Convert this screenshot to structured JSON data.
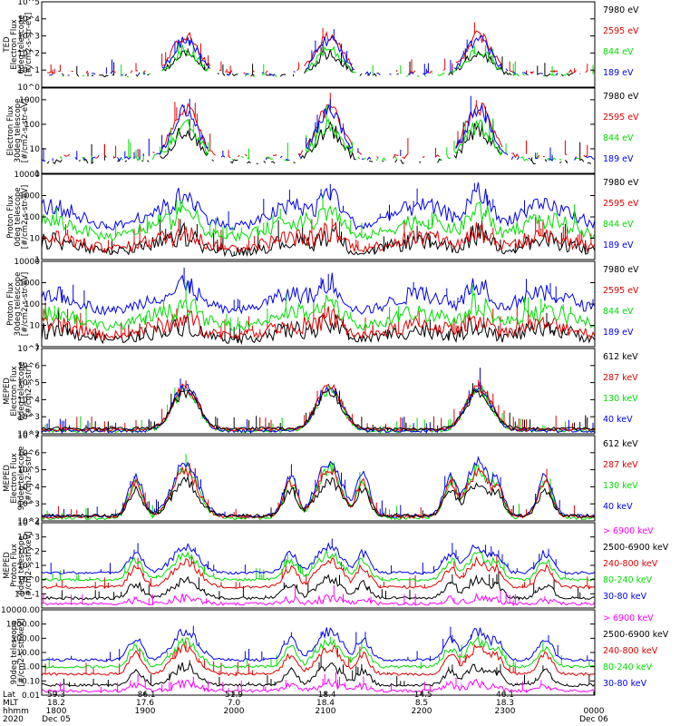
{
  "colors": {
    "black": "#000000",
    "red": "#e00000",
    "green": "#00dd00",
    "blue": "#0000ee",
    "magenta": "#ff00ff",
    "frame": "#000000"
  },
  "chart_data": [
    {
      "type": "line",
      "ylabel": [
        "TED",
        "Electron Flux",
        "0deg telescope",
        "[#/cm2-s-str-eV]"
      ],
      "scale": "log",
      "ylim": [
        1,
        100000
      ],
      "ticks": [
        {
          "v": 1,
          "t": "10^0"
        },
        {
          "v": 10,
          "t": "10^1"
        },
        {
          "v": 100,
          "t": "10^2"
        },
        {
          "v": 1000,
          "t": "10^3"
        },
        {
          "v": 10000,
          "t": "10^4"
        },
        {
          "v": 100000,
          "t": "10^5"
        }
      ],
      "legend": [
        {
          "label": "7980 eV",
          "color": "black"
        },
        {
          "label": "2595 eV",
          "color": "red"
        },
        {
          "label": "844 eV",
          "color": "green"
        },
        {
          "label": "189 eV",
          "color": "blue"
        }
      ],
      "style": "ted_e",
      "series": [
        {
          "color": "black",
          "peak": 100,
          "floor": 5
        },
        {
          "color": "red",
          "peak": 1000,
          "floor": 8
        },
        {
          "color": "green",
          "peak": 150,
          "floor": 5
        },
        {
          "color": "blue",
          "peak": 600,
          "floor": 6
        }
      ]
    },
    {
      "type": "line",
      "ylabel": [
        "Electron Flux",
        "30deg telescope",
        "[#/cm2-s-str-eV]"
      ],
      "scale": "log",
      "ylim": [
        1,
        3000
      ],
      "ticks": [
        {
          "v": 1,
          "t": "1"
        },
        {
          "v": 10,
          "t": "10"
        },
        {
          "v": 100,
          "t": "100"
        },
        {
          "v": 1000,
          "t": "1000"
        }
      ],
      "legend": [
        {
          "label": "7980 eV",
          "color": "black"
        },
        {
          "label": "2595 eV",
          "color": "red"
        },
        {
          "label": "844 eV",
          "color": "green"
        },
        {
          "label": "189 eV",
          "color": "blue"
        }
      ],
      "style": "ted_e",
      "series": [
        {
          "color": "black",
          "peak": 60,
          "floor": 3
        },
        {
          "color": "red",
          "peak": 500,
          "floor": 5
        },
        {
          "color": "green",
          "peak": 80,
          "floor": 4
        },
        {
          "color": "blue",
          "peak": 400,
          "floor": 4
        }
      ]
    },
    {
      "type": "line",
      "ylabel": [
        "Proton Flux",
        "0deg telescope",
        "[#/cm2-s-str-eV]"
      ],
      "scale": "log",
      "ylim": [
        1,
        10000
      ],
      "ticks": [
        {
          "v": 1,
          "t": "1"
        },
        {
          "v": 10,
          "t": "10"
        },
        {
          "v": 100,
          "t": "100"
        },
        {
          "v": 1000,
          "t": "1000"
        },
        {
          "v": 10000,
          "t": "10000"
        }
      ],
      "legend": [
        {
          "label": "7980 eV",
          "color": "black"
        },
        {
          "label": "2595 eV",
          "color": "red"
        },
        {
          "label": "844 eV",
          "color": "green"
        },
        {
          "label": "189 eV",
          "color": "blue"
        }
      ],
      "style": "ted_p",
      "series": [
        {
          "color": "black",
          "peak": 20,
          "floor": 2
        },
        {
          "color": "red",
          "peak": 30,
          "floor": 3
        },
        {
          "color": "blue",
          "peak": 2000,
          "floor": 30
        },
        {
          "color": "green",
          "peak": 300,
          "floor": 10
        }
      ]
    },
    {
      "type": "line",
      "ylabel": [
        "Proton Flux",
        "30deg telescope",
        "[#/cm2-s-str-eV]"
      ],
      "scale": "log",
      "ylim": [
        1,
        10000
      ],
      "ticks": [
        {
          "v": 1,
          "t": "1"
        },
        {
          "v": 10,
          "t": "10"
        },
        {
          "v": 100,
          "t": "100"
        },
        {
          "v": 1000,
          "t": "1000"
        },
        {
          "v": 10000,
          "t": "10000"
        }
      ],
      "legend": [
        {
          "label": "7980 eV",
          "color": "black"
        },
        {
          "label": "2595 eV",
          "color": "red"
        },
        {
          "label": "844 eV",
          "color": "green"
        },
        {
          "label": "189 eV",
          "color": "blue"
        }
      ],
      "style": "ted_p",
      "series": [
        {
          "color": "black",
          "peak": 15,
          "floor": 2
        },
        {
          "color": "red",
          "peak": 30,
          "floor": 3
        },
        {
          "color": "blue",
          "peak": 1500,
          "floor": 40
        },
        {
          "color": "green",
          "peak": 150,
          "floor": 8
        }
      ]
    },
    {
      "type": "line",
      "ylabel": [
        "MEPED",
        "Electron Flux",
        "0deg telescope",
        "[#/cm2-s-str]"
      ],
      "scale": "log",
      "ylim": [
        100,
        10000000
      ],
      "ticks": [
        {
          "v": 100,
          "t": "10^2"
        },
        {
          "v": 1000,
          "t": "10^3"
        },
        {
          "v": 10000,
          "t": "10^4"
        },
        {
          "v": 100000,
          "t": "10^5"
        },
        {
          "v": 1000000,
          "t": "10^6"
        },
        {
          "v": 10000000,
          "t": "10^7"
        }
      ],
      "legend": [
        {
          "label": "612 keV",
          "color": "black"
        },
        {
          "label": "287 keV",
          "color": "red"
        },
        {
          "label": "130 keV",
          "color": "green"
        },
        {
          "label": "40 keV",
          "color": "blue"
        }
      ],
      "style": "mep_e0",
      "series": [
        {
          "color": "green",
          "peak": 40000,
          "floor": 150
        },
        {
          "color": "blue",
          "peak": 60000,
          "floor": 150
        },
        {
          "color": "red",
          "peak": 50000,
          "floor": 180
        },
        {
          "color": "black",
          "peak": 30000,
          "floor": 200
        }
      ]
    },
    {
      "type": "line",
      "ylabel": [
        "MEPED",
        "Electron Flux",
        "90deg telescope",
        "[#/cm2-s-str]"
      ],
      "scale": "log",
      "ylim": [
        100,
        10000000
      ],
      "ticks": [
        {
          "v": 100,
          "t": "10^2"
        },
        {
          "v": 1000,
          "t": "10^3"
        },
        {
          "v": 10000,
          "t": "10^4"
        },
        {
          "v": 100000,
          "t": "10^5"
        },
        {
          "v": 1000000,
          "t": "10^6"
        },
        {
          "v": 10000000,
          "t": "10^7"
        }
      ],
      "legend": [
        {
          "label": "612 keV",
          "color": "black"
        },
        {
          "label": "287 keV",
          "color": "red"
        },
        {
          "label": "130 keV",
          "color": "green"
        },
        {
          "label": "40 keV",
          "color": "blue"
        }
      ],
      "style": "mep_e90",
      "series": [
        {
          "color": "green",
          "peak": 100000,
          "floor": 150
        },
        {
          "color": "blue",
          "peak": 300000,
          "floor": 200
        },
        {
          "color": "red",
          "peak": 80000,
          "floor": 180
        },
        {
          "color": "black",
          "peak": 20000,
          "floor": 200
        }
      ]
    },
    {
      "type": "line",
      "ylabel": [
        "MEPED",
        "Proton Flux",
        "0deg telescope",
        "[#/cm2-s-str-keV]"
      ],
      "scale": "log",
      "ylim": [
        0.01,
        10000
      ],
      "ticks": [
        {
          "v": 0.1,
          "t": "10^-1"
        },
        {
          "v": 1,
          "t": "10^0"
        },
        {
          "v": 10,
          "t": "10^1"
        },
        {
          "v": 100,
          "t": "10^2"
        },
        {
          "v": 1000,
          "t": "10^3"
        },
        {
          "v": 10000,
          "t": "10^4"
        }
      ],
      "legend": [
        {
          "label": "> 6900 keV",
          "color": "magenta"
        },
        {
          "label": "2500-6900 keV",
          "color": "black"
        },
        {
          "label": "240-800 keV",
          "color": "red"
        },
        {
          "label": "80-240 keV",
          "color": "green"
        },
        {
          "label": "30-80 keV",
          "color": "blue"
        }
      ],
      "style": "mep_p",
      "series": [
        {
          "color": "black",
          "peak": 1,
          "floor": 0.05
        },
        {
          "color": "red",
          "peak": 20,
          "floor": 0.3
        },
        {
          "color": "green",
          "peak": 60,
          "floor": 1
        },
        {
          "color": "blue",
          "peak": 200,
          "floor": 3
        },
        {
          "color": "magenta",
          "peak": 0.05,
          "floor": 0.02
        }
      ]
    },
    {
      "type": "line",
      "ylabel": [
        "90deg telescope",
        "[#/cm2-s-str-keV]"
      ],
      "scale": "log",
      "ylim": [
        0.01,
        10000
      ],
      "ticks": [
        {
          "v": 0.01,
          "t": "0.01"
        },
        {
          "v": 0.1,
          "t": "0.10"
        },
        {
          "v": 1,
          "t": "1.00"
        },
        {
          "v": 10,
          "t": "10.00"
        },
        {
          "v": 100,
          "t": "100.00"
        },
        {
          "v": 1000,
          "t": "1000.00"
        },
        {
          "v": 10000,
          "t": "10000.00"
        }
      ],
      "legend": [
        {
          "label": "> 6900 keV",
          "color": "magenta"
        },
        {
          "label": "2500-6900 keV",
          "color": "black"
        },
        {
          "label": "240-800 keV",
          "color": "red"
        },
        {
          "label": "80-240 keV",
          "color": "green"
        },
        {
          "label": "30-80 keV",
          "color": "blue"
        }
      ],
      "style": "mep_p",
      "series": [
        {
          "color": "black",
          "peak": 1,
          "floor": 0.05
        },
        {
          "color": "red",
          "peak": 20,
          "floor": 0.3
        },
        {
          "color": "green",
          "peak": 60,
          "floor": 1
        },
        {
          "color": "blue",
          "peak": 300,
          "floor": 3
        },
        {
          "color": "magenta",
          "peak": 0.06,
          "floor": 0.02
        }
      ]
    }
  ],
  "xaxis": {
    "range_hhmm": [
      "1800",
      "0000"
    ],
    "row_labels": [
      "Lat",
      "MLT",
      "hhmm",
      "2020"
    ],
    "columns": [
      {
        "lat": "59.3",
        "mlt": "18.2",
        "hhmm": "1800",
        "date": "Dec 05"
      },
      {
        "lat": "-86.1",
        "mlt": "17.6",
        "hhmm": "1900",
        "date": ""
      },
      {
        "lat": "51.9",
        "mlt": "7.0",
        "hhmm": "2000",
        "date": ""
      },
      {
        "lat": "-18.4",
        "mlt": "18.4",
        "hhmm": "2100",
        "date": ""
      },
      {
        "lat": "-14.5",
        "mlt": "8.5",
        "hhmm": "2200",
        "date": ""
      },
      {
        "lat": "46.1",
        "mlt": "18.3",
        "hhmm": "2300",
        "date": ""
      },
      {
        "lat": "",
        "mlt": "",
        "hhmm": "0000",
        "date": "Dec 06"
      }
    ]
  }
}
